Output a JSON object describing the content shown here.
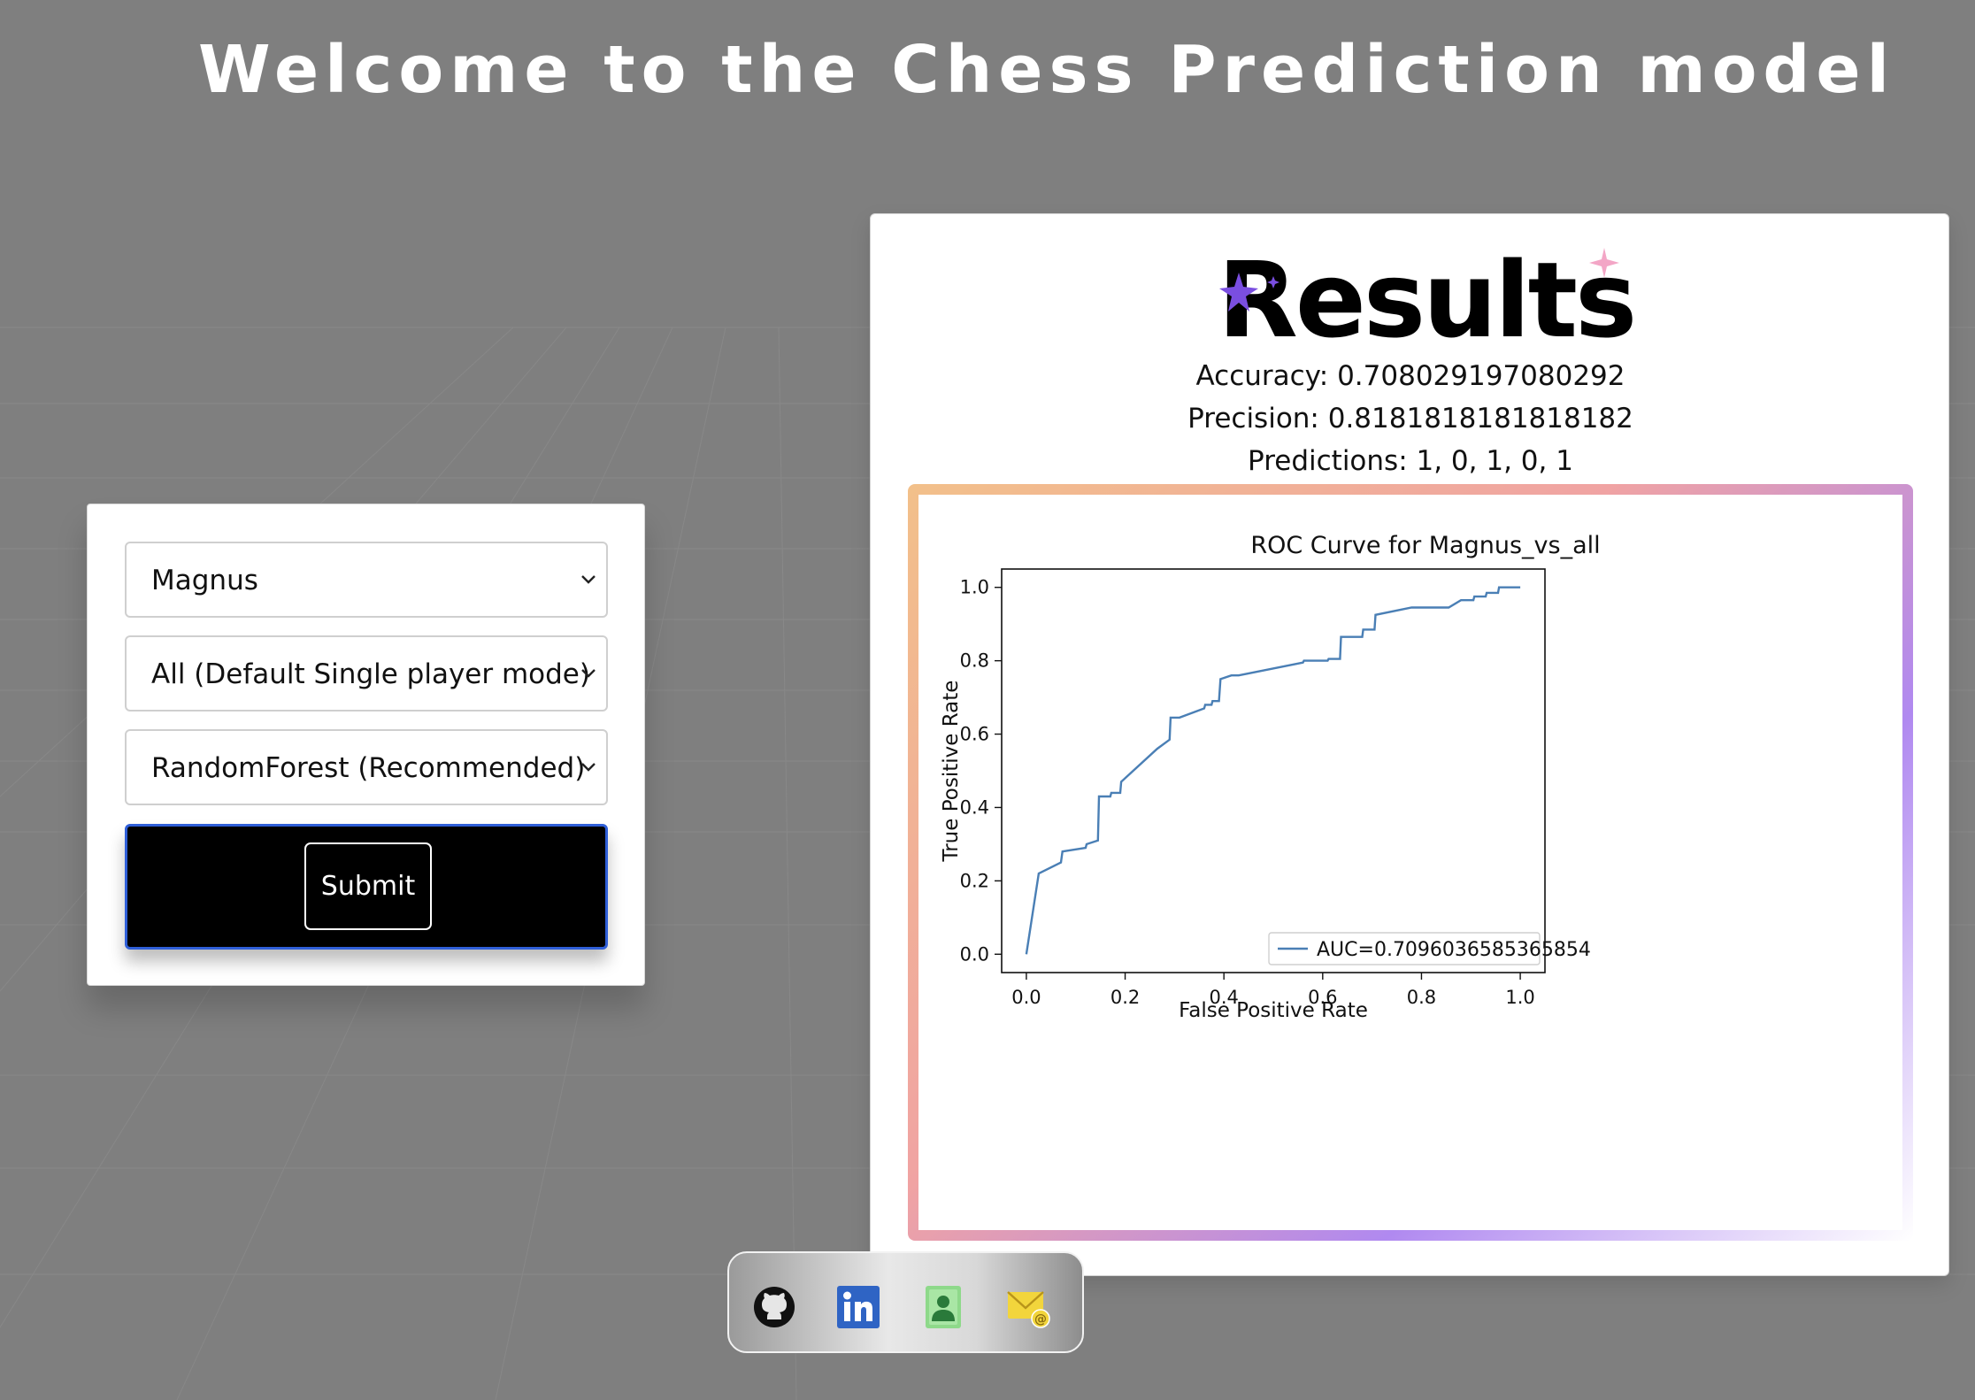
{
  "header": {
    "title": "Welcome to the Chess Prediction model"
  },
  "form": {
    "player_select": "Magnus",
    "mode_select": "All (Default Single player mode)",
    "model_select": "RandomForest (Recommended)",
    "submit_label": "Submit"
  },
  "results": {
    "title": "Results",
    "accuracy": "Accuracy: 0.708029197080292",
    "precision": "Precision: 0.8181818181818182",
    "predictions": "Predictions: 1, 0, 1, 0, 1"
  },
  "chart_data": {
    "type": "line",
    "title": "ROC Curve for Magnus_vs_all",
    "xlabel": "False Positive Rate",
    "ylabel": "True Positive Rate",
    "xlim": [
      -0.05,
      1.05
    ],
    "ylim": [
      -0.05,
      1.05
    ],
    "xticks": [
      "0.0",
      "0.2",
      "0.4",
      "0.6",
      "0.8",
      "1.0"
    ],
    "yticks": [
      "0.0",
      "0.2",
      "0.4",
      "0.6",
      "0.8",
      "1.0"
    ],
    "legend_location": "lower right",
    "series": [
      {
        "name": "AUC=0.7096036585365854",
        "color": "#4a7fb5",
        "x": [
          0.0,
          0.025,
          0.07,
          0.073,
          0.12,
          0.122,
          0.145,
          0.147,
          0.17,
          0.172,
          0.19,
          0.192,
          0.265,
          0.29,
          0.292,
          0.31,
          0.36,
          0.362,
          0.375,
          0.377,
          0.39,
          0.393,
          0.415,
          0.43,
          0.56,
          0.562,
          0.61,
          0.612,
          0.635,
          0.637,
          0.68,
          0.682,
          0.705,
          0.707,
          0.78,
          0.785,
          0.855,
          0.88,
          0.882,
          0.905,
          0.907,
          0.93,
          0.932,
          0.955,
          0.957,
          1.0
        ],
        "y": [
          0.0,
          0.22,
          0.25,
          0.28,
          0.29,
          0.3,
          0.31,
          0.43,
          0.43,
          0.44,
          0.44,
          0.47,
          0.56,
          0.585,
          0.645,
          0.645,
          0.67,
          0.68,
          0.68,
          0.69,
          0.69,
          0.75,
          0.76,
          0.76,
          0.795,
          0.8,
          0.8,
          0.805,
          0.805,
          0.865,
          0.865,
          0.885,
          0.885,
          0.925,
          0.945,
          0.945,
          0.945,
          0.965,
          0.965,
          0.965,
          0.975,
          0.975,
          0.985,
          0.985,
          1.0,
          1.0
        ]
      }
    ]
  },
  "social": {
    "icons": [
      "github-icon",
      "linkedin-icon",
      "contact-card-icon",
      "email-icon"
    ],
    "colors": {
      "linkedin": "#2f64c4",
      "contact": "#8ed98a",
      "email": "#f2d53c"
    }
  }
}
